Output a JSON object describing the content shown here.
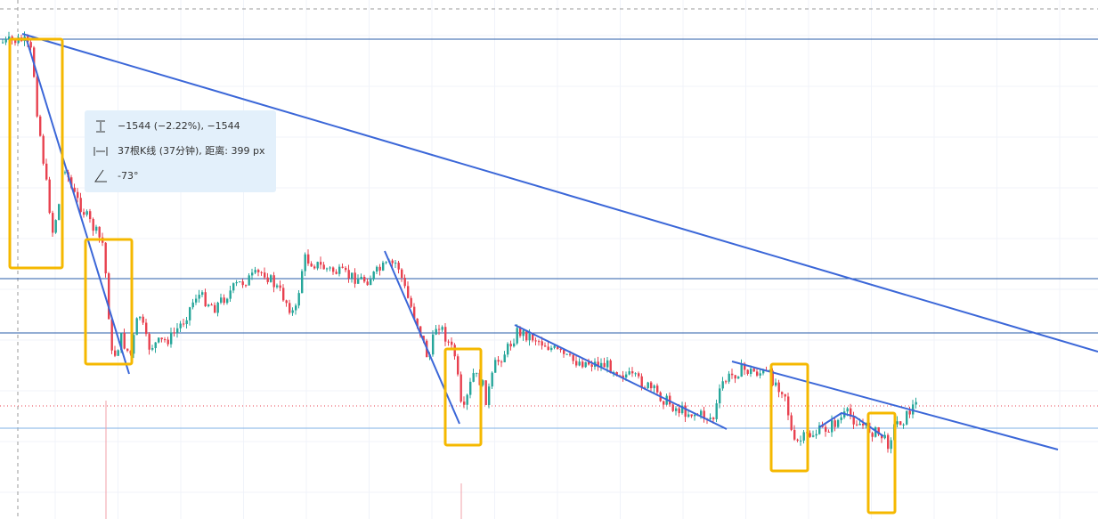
{
  "tooltip": {
    "measure": "−1544 (−2.22%), −1544",
    "bars": "37根K线 (37分钟), 距离: 399 px",
    "angle": "-73°"
  }
}
